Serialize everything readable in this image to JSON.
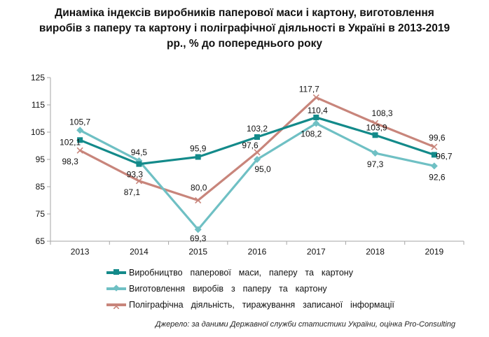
{
  "chart_data": {
    "type": "line",
    "title_lines": [
      "Динаміка індексів виробників паперової маси і картону, виготовлення",
      "виробів з паперу та картону і поліграфічної діяльності в Україні в 2013-2019",
      "рр., % до попереднього року"
    ],
    "categories": [
      "2013",
      "2014",
      "2015",
      "2016",
      "2017",
      "2018",
      "2019"
    ],
    "ylim": [
      65,
      125
    ],
    "yticks": [
      65,
      75,
      85,
      95,
      105,
      115,
      125
    ],
    "grid": false,
    "legend_position": "bottom",
    "series": [
      {
        "name": "Виробництво  паперової  маси,  паперу  та  картону",
        "color": "#138a8a",
        "marker": "square",
        "values": [
          102.1,
          93.3,
          95.9,
          103.2,
          110.4,
          103.9,
          96.7
        ],
        "labels": [
          "102,1",
          "93,3",
          "95,9",
          "103,2",
          "110,4",
          "103,9",
          "96,7"
        ]
      },
      {
        "name": "Виготовлення  виробів  з  паперу  та  картону",
        "color": "#6fc0c4",
        "marker": "diamond",
        "values": [
          105.7,
          94.5,
          69.3,
          95.0,
          108.2,
          97.3,
          92.6
        ],
        "labels": [
          "105,7",
          "94,5",
          "69,3",
          "95,0",
          "108,2",
          "97,3",
          "92,6"
        ]
      },
      {
        "name": "Поліграфічна  діяльність,  тиражування  записаної  інформації",
        "color": "#c8857b",
        "marker": "x",
        "values": [
          98.3,
          87.1,
          80.0,
          97.6,
          117.7,
          108.3,
          99.6
        ],
        "labels": [
          "98,3",
          "87,1",
          "80,0",
          "97,6",
          "117,7",
          "108,3",
          "99,6"
        ]
      }
    ]
  },
  "source": "Джерело: за даними Державної служби статистики України, оцінка Pro-Consulting"
}
